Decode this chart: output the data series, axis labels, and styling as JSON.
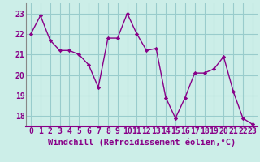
{
  "hours": [
    0,
    1,
    2,
    3,
    4,
    5,
    6,
    7,
    8,
    9,
    10,
    11,
    12,
    13,
    14,
    15,
    16,
    17,
    18,
    19,
    20,
    21,
    22,
    23
  ],
  "values": [
    22.0,
    22.9,
    21.7,
    21.2,
    21.2,
    21.0,
    20.5,
    19.4,
    21.8,
    21.8,
    23.0,
    22.0,
    21.2,
    21.3,
    18.9,
    17.9,
    18.9,
    20.1,
    20.1,
    20.3,
    20.9,
    19.2,
    17.9,
    17.6
  ],
  "line_color": "#880088",
  "marker_color": "#880088",
  "bg_color": "#cceee8",
  "grid_color": "#99cccc",
  "xlabel": "Windchill (Refroidissement éolien,°C)",
  "ylim": [
    17.5,
    23.5
  ],
  "yticks": [
    18,
    19,
    20,
    21,
    22,
    23
  ],
  "tick_fontsize": 7.0,
  "xlabel_fontsize": 7.5,
  "linewidth": 1.0,
  "markersize": 2.2
}
